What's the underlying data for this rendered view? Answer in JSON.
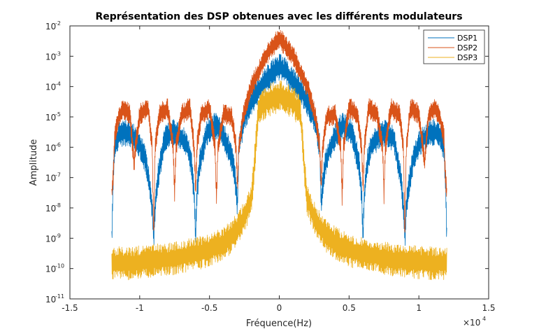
{
  "chart_data": {
    "type": "line",
    "title": "Représentation des DSP obtenues avec les différents modulateurs",
    "xlabel": "Fréquence(Hz)",
    "ylabel": "Amplitude",
    "x_exponent_label": "×10",
    "x_exponent": "4",
    "xlim": [
      -15000,
      15000
    ],
    "ylim": [
      1e-11,
      0.01
    ],
    "yscale": "log",
    "x_ticks": [
      {
        "value": -15000,
        "label": "-1.5"
      },
      {
        "value": -10000,
        "label": "-1"
      },
      {
        "value": -5000,
        "label": "-0.5"
      },
      {
        "value": 0,
        "label": "0"
      },
      {
        "value": 5000,
        "label": "0.5"
      },
      {
        "value": 10000,
        "label": "1"
      },
      {
        "value": 15000,
        "label": "1.5"
      }
    ],
    "y_ticks": [
      {
        "value": 1e-11,
        "base": "10",
        "exp": "-11"
      },
      {
        "value": 1e-10,
        "base": "10",
        "exp": "-10"
      },
      {
        "value": 1e-09,
        "base": "10",
        "exp": "-9"
      },
      {
        "value": 1e-08,
        "base": "10",
        "exp": "-8"
      },
      {
        "value": 1e-07,
        "base": "10",
        "exp": "-7"
      },
      {
        "value": 1e-06,
        "base": "10",
        "exp": "-6"
      },
      {
        "value": 1e-05,
        "base": "10",
        "exp": "-5"
      },
      {
        "value": 0.0001,
        "base": "10",
        "exp": "-4"
      },
      {
        "value": 0.001,
        "base": "10",
        "exp": "-3"
      },
      {
        "value": 0.01,
        "base": "10",
        "exp": "-2"
      }
    ],
    "grid": false,
    "legend_position": "top-right",
    "series": [
      {
        "name": "DSP1",
        "color": "#0072bd",
        "x": [
          -12000,
          -11900,
          -11800,
          -11500,
          -11200,
          -10700,
          -10400,
          -10000,
          -9600,
          -9300,
          -9100,
          -9000,
          -8900,
          -8700,
          -8200,
          -7600,
          -7200,
          -6600,
          -6300,
          -6100,
          -6000,
          -5900,
          -5700,
          -5200,
          -4600,
          -4300,
          -3800,
          -3300,
          -3100,
          -3000,
          -2900,
          -2500,
          -2000,
          -1500,
          -1000,
          -500,
          0,
          500,
          1000,
          1500,
          2000,
          2500,
          2900,
          3000,
          3100,
          3300,
          3800,
          4300,
          4600,
          5200,
          5700,
          5900,
          6000,
          6100,
          6300,
          6600,
          7200,
          7600,
          8200,
          8700,
          8900,
          9000,
          9100,
          9300,
          9600,
          10000,
          10400,
          10700,
          11200,
          11500,
          11800,
          11900,
          12000
        ],
        "y": [
          1e-09,
          1e-07,
          1e-06,
          2.5e-06,
          3e-06,
          3e-06,
          2e-06,
          1.2e-06,
          4e-07,
          6e-08,
          1e-08,
          1e-09,
          1e-08,
          1e-07,
          2e-06,
          3e-06,
          2.5e-06,
          1.2e-06,
          3e-07,
          3e-08,
          1e-09,
          3e-08,
          3e-07,
          3e-06,
          5e-06,
          4e-06,
          1.5e-06,
          3e-07,
          5e-08,
          1e-08,
          1e-06,
          1e-05,
          3e-05,
          8e-05,
          0.00015,
          0.0003,
          0.00045,
          0.0003,
          0.00015,
          8e-05,
          3e-05,
          1e-05,
          1e-06,
          1e-08,
          5e-08,
          3e-07,
          1.5e-06,
          4e-06,
          5e-06,
          3e-06,
          3e-07,
          3e-08,
          1e-09,
          3e-08,
          3e-07,
          1.2e-06,
          2.5e-06,
          3e-06,
          2e-06,
          1e-07,
          1e-08,
          1e-09,
          1e-08,
          6e-08,
          4e-07,
          1.2e-06,
          2e-06,
          3e-06,
          3e-06,
          2.5e-06,
          1e-06,
          1e-07,
          1e-09
        ]
      },
      {
        "name": "DSP2",
        "color": "#d95319",
        "x": [
          -12000,
          -11900,
          -11800,
          -11500,
          -11200,
          -10700,
          -10500,
          -10400,
          -10300,
          -10000,
          -9400,
          -9100,
          -9000,
          -8900,
          -8600,
          -8000,
          -7600,
          -7500,
          -7400,
          -7000,
          -6400,
          -6100,
          -6000,
          -5900,
          -5600,
          -5000,
          -4600,
          -4500,
          -4400,
          -4000,
          -3400,
          -3100,
          -3000,
          -2900,
          -2600,
          -2000,
          -1500,
          -1000,
          -500,
          0,
          500,
          1000,
          1500,
          2000,
          2600,
          2900,
          3000,
          3100,
          3400,
          4000,
          4400,
          4500,
          4600,
          5000,
          5600,
          5900,
          6000,
          6100,
          6400,
          7000,
          7400,
          7500,
          7600,
          8000,
          8600,
          8900,
          9000,
          9100,
          9400,
          10000,
          10300,
          10400,
          10500,
          10700,
          11200,
          11500,
          11800,
          11900,
          12000
        ],
        "y": [
          3e-08,
          1e-07,
          2e-06,
          1e-05,
          2e-05,
          1.2e-05,
          1e-06,
          3e-07,
          1e-06,
          1.2e-05,
          2e-05,
          1e-06,
          1e-09,
          1e-06,
          1.2e-05,
          2e-05,
          1e-06,
          3e-08,
          1e-06,
          1.2e-05,
          2e-05,
          1e-06,
          4e-08,
          1e-06,
          1.2e-05,
          2e-05,
          1e-06,
          2e-08,
          1e-06,
          1.2e-05,
          1e-05,
          1e-06,
          5e-08,
          1e-06,
          1e-05,
          0.0001,
          0.0003,
          0.001,
          0.002,
          0.004,
          0.002,
          0.001,
          0.0003,
          0.0001,
          1e-05,
          1e-06,
          5e-08,
          1e-06,
          1e-05,
          1.2e-05,
          1e-06,
          2e-08,
          1e-06,
          2e-05,
          1.2e-05,
          1e-06,
          4e-08,
          1e-06,
          2e-05,
          1.2e-05,
          1e-06,
          3e-08,
          1e-06,
          2e-05,
          1.2e-05,
          1e-06,
          1e-09,
          1e-06,
          2e-05,
          1.2e-05,
          1e-06,
          3e-07,
          1e-06,
          1.2e-05,
          2e-05,
          1e-05,
          2e-06,
          1e-07,
          3e-08
        ]
      },
      {
        "name": "DSP3",
        "color": "#edb120",
        "x": [
          -12000,
          -11500,
          -11000,
          -10500,
          -10000,
          -9000,
          -8000,
          -7000,
          -6000,
          -5000,
          -4000,
          -3500,
          -3000,
          -2500,
          -2000,
          -1800,
          -1600,
          -1500,
          -1000,
          -500,
          0,
          500,
          1000,
          1500,
          1600,
          1800,
          2000,
          2500,
          3000,
          3500,
          4000,
          5000,
          6000,
          7000,
          8000,
          9000,
          10000,
          10500,
          11000,
          11500,
          12000
        ],
        "y": [
          1.5e-10,
          1.5e-10,
          1.5e-10,
          1.5e-10,
          1.6e-10,
          1.8e-10,
          2e-10,
          2.5e-10,
          3e-10,
          4e-10,
          7e-10,
          1e-09,
          2e-09,
          5e-09,
          2e-08,
          2e-07,
          4e-06,
          1.5e-05,
          3e-05,
          4e-05,
          5e-05,
          4e-05,
          3e-05,
          1.5e-05,
          4e-06,
          2e-07,
          2e-08,
          5e-09,
          2e-09,
          1e-09,
          7e-10,
          4e-10,
          3e-10,
          2.5e-10,
          2e-10,
          1.8e-10,
          1.6e-10,
          1.5e-10,
          1.5e-10,
          1.5e-10,
          1.5e-10
        ]
      }
    ]
  }
}
